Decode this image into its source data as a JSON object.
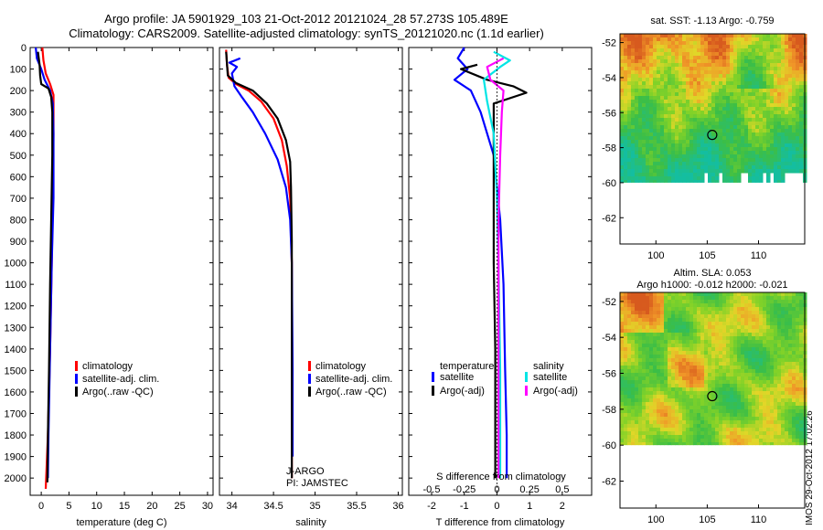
{
  "header": {
    "line1": "Argo profile: JA 5901929_103 21-Oct-2012 20121024_28 57.273S 105.489E",
    "line2": "Climatology: CARS2009. Satellite-adjusted climatology: synTS_20121020.nc (1.1d earlier)"
  },
  "imos_stamp": "IMOS 29-Oct-2012 17:02:26",
  "colors": {
    "climatology": "#ff0000",
    "satellite": "#0000ff",
    "argo": "#000000",
    "sal_sat": "#00e5e5",
    "sal_argo": "#ff00ff"
  },
  "chart_data": [
    {
      "type": "line",
      "id": "temperature",
      "xlabel": "temperature (deg C)",
      "xlim": [
        -2,
        31
      ],
      "xticks": [
        "0",
        "5",
        "10",
        "15",
        "20",
        "25",
        "30"
      ],
      "xtick_values": [
        0,
        5,
        10,
        15,
        20,
        25,
        30
      ],
      "ylim": [
        0,
        2080
      ],
      "yticks": [
        "0",
        "100",
        "200",
        "300",
        "400",
        "500",
        "600",
        "700",
        "800",
        "900",
        "1000",
        "1100",
        "1200",
        "1300",
        "1400",
        "1500",
        "1600",
        "1700",
        "1800",
        "1900",
        "2000"
      ],
      "ytick_values": [
        0,
        100,
        200,
        300,
        400,
        500,
        600,
        700,
        800,
        900,
        1000,
        1100,
        1200,
        1300,
        1400,
        1500,
        1600,
        1700,
        1800,
        1900,
        2000
      ],
      "legend": [
        "climatology",
        "satellite-adj. clim.",
        "Argo(..raw -QC)"
      ],
      "series": [
        {
          "name": "climatology",
          "color": "#ff0000",
          "points": [
            [
              0.2,
              0
            ],
            [
              0.4,
              60
            ],
            [
              0.8,
              120
            ],
            [
              1.6,
              170
            ],
            [
              2.2,
              220
            ],
            [
              2.2,
              400
            ],
            [
              2.1,
              700
            ],
            [
              1.9,
              1000
            ],
            [
              1.6,
              1400
            ],
            [
              1.2,
              1800
            ],
            [
              0.8,
              2050
            ]
          ]
        },
        {
          "name": "satellite-adj. clim.",
          "color": "#0000ff",
          "points": [
            [
              -1,
              0
            ],
            [
              -0.8,
              50
            ],
            [
              0,
              100
            ],
            [
              0.6,
              150
            ],
            [
              1.6,
              200
            ],
            [
              2.1,
              260
            ],
            [
              2.2,
              400
            ],
            [
              2.2,
              700
            ],
            [
              1.9,
              1000
            ],
            [
              1.6,
              1400
            ],
            [
              1.3,
              1800
            ],
            [
              1.2,
              2000
            ]
          ]
        },
        {
          "name": "Argo(..raw -QC)",
          "color": "#000000",
          "points": [
            [
              -0.6,
              20
            ],
            [
              -0.3,
              80
            ],
            [
              -0.2,
              130
            ],
            [
              0.0,
              170
            ],
            [
              1.3,
              190
            ],
            [
              1.8,
              230
            ],
            [
              2.0,
              300
            ],
            [
              2.0,
              500
            ],
            [
              1.8,
              800
            ],
            [
              1.6,
              1100
            ],
            [
              1.4,
              1500
            ],
            [
              1.2,
              1800
            ],
            [
              1.1,
              2020
            ]
          ]
        }
      ]
    },
    {
      "type": "line",
      "id": "salinity",
      "xlabel": "salinity",
      "xlim": [
        33.85,
        36.05
      ],
      "xticks": [
        "34",
        "34.5",
        "35",
        "35.5",
        "36"
      ],
      "xtick_values": [
        34,
        34.5,
        35,
        35.5,
        36
      ],
      "ylim": [
        0,
        2080
      ],
      "legend": [
        "climatology",
        "satellite-adj. clim.",
        "Argo(..raw -QC)"
      ],
      "annotation": [
        "J-ARGO",
        "PI: JAMSTEC"
      ],
      "series": [
        {
          "name": "climatology",
          "color": "#ff0000",
          "points": [
            [
              33.93,
              10
            ],
            [
              33.94,
              80
            ],
            [
              33.96,
              140
            ],
            [
              34.05,
              170
            ],
            [
              34.2,
              200
            ],
            [
              34.35,
              250
            ],
            [
              34.5,
              330
            ],
            [
              34.6,
              430
            ],
            [
              34.66,
              550
            ],
            [
              34.7,
              700
            ],
            [
              34.72,
              1000
            ],
            [
              34.72,
              1500
            ],
            [
              34.72,
              2000
            ]
          ]
        },
        {
          "name": "satellite-adj. clim.",
          "color": "#0000ff",
          "points": [
            [
              34.1,
              50
            ],
            [
              33.97,
              70
            ],
            [
              34.06,
              90
            ],
            [
              34.0,
              120
            ],
            [
              34.03,
              180
            ],
            [
              34.12,
              230
            ],
            [
              34.25,
              300
            ],
            [
              34.4,
              400
            ],
            [
              34.55,
              520
            ],
            [
              34.65,
              650
            ],
            [
              34.7,
              800
            ],
            [
              34.72,
              1000
            ],
            [
              34.73,
              1500
            ],
            [
              34.73,
              1900
            ]
          ]
        },
        {
          "name": "Argo(..raw -QC)",
          "color": "#000000",
          "points": [
            [
              33.93,
              20
            ],
            [
              33.95,
              130
            ],
            [
              34.05,
              165
            ],
            [
              34.25,
              200
            ],
            [
              34.42,
              260
            ],
            [
              34.55,
              330
            ],
            [
              34.65,
              430
            ],
            [
              34.7,
              530
            ],
            [
              34.71,
              650
            ],
            [
              34.72,
              900
            ],
            [
              34.72,
              1400
            ],
            [
              34.72,
              2000
            ]
          ]
        }
      ]
    },
    {
      "type": "line",
      "id": "difference",
      "xlabel": "T difference from climatology",
      "xlim": [
        -2.7,
        2.9
      ],
      "xticks": [
        "-2",
        "-1",
        "0",
        "1",
        "2"
      ],
      "xtick_values": [
        -2,
        -1,
        0,
        1,
        2
      ],
      "top_xlabel": "S difference from climatology",
      "top_xticks": [
        "-0.5",
        "-0.25",
        "0",
        "0.25",
        "0.5"
      ],
      "top_xtick_values": [
        -2,
        -1,
        0,
        1,
        2
      ],
      "ylim": [
        0,
        2080
      ],
      "legend_titles": [
        "temperature",
        "salinity"
      ],
      "legend": [
        "satellite",
        "Argo(-adj)",
        "satellite",
        "Argo(-adj)"
      ],
      "series": [
        {
          "name": "T satellite",
          "color": "#0000ff",
          "points": [
            [
              -1.0,
              0
            ],
            [
              -1.2,
              50
            ],
            [
              -0.9,
              100
            ],
            [
              -1.3,
              150
            ],
            [
              -0.8,
              200
            ],
            [
              -0.5,
              300
            ],
            [
              -0.1,
              500
            ],
            [
              0.1,
              800
            ],
            [
              0.2,
              1100
            ],
            [
              0.25,
              1500
            ],
            [
              0.3,
              1800
            ],
            [
              0.3,
              2000
            ]
          ]
        },
        {
          "name": "T Argo(-adj)",
          "color": "#000000",
          "points": [
            [
              -0.6,
              80
            ],
            [
              -1.1,
              100
            ],
            [
              -0.3,
              150
            ],
            [
              0.5,
              180
            ],
            [
              0.9,
              210
            ],
            [
              -0.1,
              260
            ],
            [
              -0.1,
              400
            ],
            [
              -0.1,
              700
            ],
            [
              -0.1,
              1000
            ],
            [
              -0.05,
              1400
            ],
            [
              -0.05,
              1800
            ],
            [
              -0.05,
              2000
            ]
          ]
        },
        {
          "name": "S satellite",
          "color": "#00e5e5",
          "points": [
            [
              -0.1,
              20
            ],
            [
              0.4,
              60
            ],
            [
              0.1,
              90
            ],
            [
              -0.4,
              150
            ],
            [
              -0.3,
              250
            ],
            [
              -0.1,
              400
            ],
            [
              0.0,
              700
            ],
            [
              0.05,
              1000
            ],
            [
              0.1,
              1500
            ],
            [
              0.1,
              2000
            ]
          ]
        },
        {
          "name": "S Argo(-adj)",
          "color": "#ff00ff",
          "points": [
            [
              0.2,
              50
            ],
            [
              -0.3,
              90
            ],
            [
              -0.2,
              150
            ],
            [
              0.2,
              200
            ],
            [
              0.15,
              300
            ],
            [
              0.1,
              500
            ],
            [
              0.05,
              800
            ],
            [
              0.05,
              1200
            ],
            [
              0.05,
              1600
            ],
            [
              0.05,
              2000
            ]
          ]
        }
      ]
    },
    {
      "type": "heatmap",
      "id": "sst_map",
      "title": "sat. SST: -1.13 Argo: -0.759",
      "xlim": [
        96.5,
        114.5
      ],
      "ylim": [
        -63.5,
        -51.5
      ],
      "xticks": [
        "100",
        "105",
        "110"
      ],
      "xtick_values": [
        100,
        105,
        110
      ],
      "yticks": [
        "-52",
        "-54",
        "-56",
        "-58",
        "-60",
        "-62"
      ],
      "ytick_values": [
        -52,
        -54,
        -56,
        -58,
        -60,
        -62
      ],
      "data_south_limit": -60,
      "marker": {
        "lon": 105.489,
        "lat": -57.273
      }
    },
    {
      "type": "heatmap",
      "id": "sla_map",
      "title": "Altim. SLA: 0.053",
      "subtitle": "Argo h1000: -0.012 h2000: -0.021",
      "xlim": [
        96.5,
        114.5
      ],
      "ylim": [
        -63.5,
        -51.5
      ],
      "xticks": [
        "100",
        "105",
        "110"
      ],
      "xtick_values": [
        100,
        105,
        110
      ],
      "yticks": [
        "-52",
        "-54",
        "-56",
        "-58",
        "-60",
        "-62"
      ],
      "ytick_values": [
        -52,
        -54,
        -56,
        -58,
        -60,
        -62
      ],
      "data_south_limit": -60,
      "marker": {
        "lon": 105.489,
        "lat": -57.273
      }
    }
  ]
}
